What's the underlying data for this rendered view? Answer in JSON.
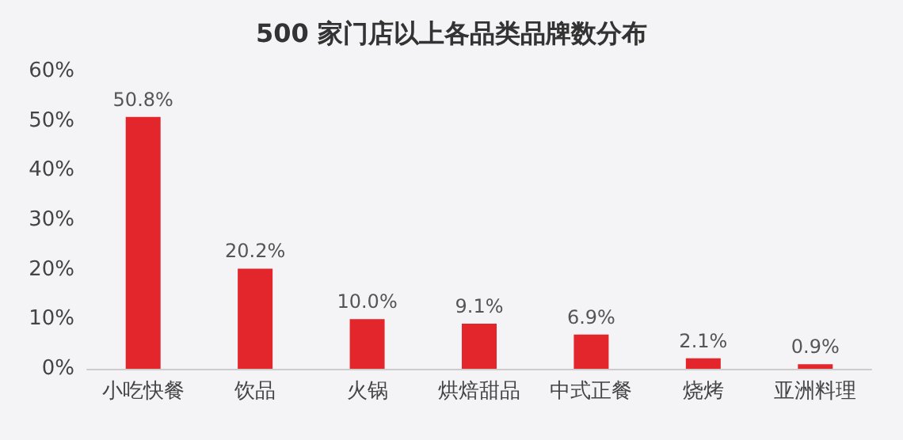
{
  "chart_data": {
    "type": "bar",
    "title": "500 家门店以上各品类品牌数分布",
    "categories": [
      "小吃快餐",
      "饮品",
      "火锅",
      "烘焙甜品",
      "中式正餐",
      "烧烤",
      "亚洲料理"
    ],
    "values": [
      50.8,
      20.2,
      10.0,
      9.1,
      6.9,
      2.1,
      0.9
    ],
    "value_labels": [
      "50.8%",
      "20.2%",
      "10.0%",
      "9.1%",
      "6.9%",
      "2.1%",
      "0.9%"
    ],
    "color": "#e3262c",
    "ylim": [
      0,
      60
    ],
    "yticks": [
      {
        "value": 0,
        "label": "0%"
      },
      {
        "value": 10,
        "label": "10%"
      },
      {
        "value": 20,
        "label": "20%"
      },
      {
        "value": 30,
        "label": "30%"
      },
      {
        "value": 40,
        "label": "40%"
      },
      {
        "value": 50,
        "label": "50%"
      },
      {
        "value": 60,
        "label": "60%"
      }
    ],
    "grid": false
  }
}
